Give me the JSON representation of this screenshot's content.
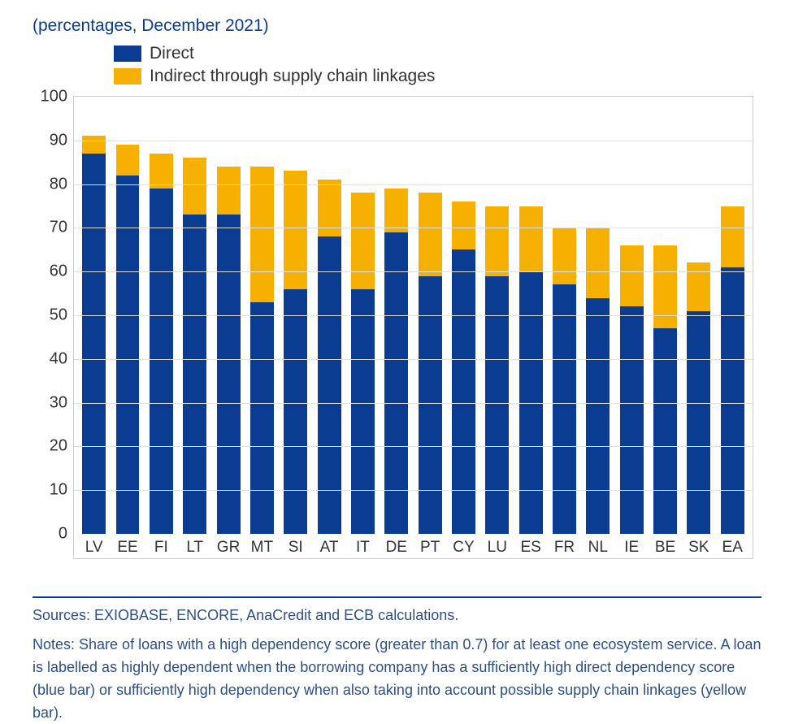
{
  "subtitle": "(percentages, December 2021)",
  "subtitle_color": "#0a3d91",
  "legend": {
    "items": [
      {
        "label": "Direct",
        "color": "#0a3d91"
      },
      {
        "label": "Indirect through supply chain linkages",
        "color": "#f6b000"
      }
    ]
  },
  "chart": {
    "type": "stacked-bar",
    "ylim": [
      0,
      100
    ],
    "ytick_step": 10,
    "yticks": [
      0,
      10,
      20,
      30,
      40,
      50,
      60,
      70,
      80,
      90,
      100
    ],
    "grid_color": "#e0e0e0",
    "border_color": "#cccccc",
    "background_color": "#ffffff",
    "tick_font_size": 20,
    "tick_color": "#333333",
    "bar_width": 0.7,
    "categories": [
      "LV",
      "EE",
      "FI",
      "LT",
      "GR",
      "MT",
      "SI",
      "AT",
      "IT",
      "DE",
      "PT",
      "CY",
      "LU",
      "ES",
      "FR",
      "NL",
      "IE",
      "BE",
      "SK",
      "EA"
    ],
    "series": [
      {
        "name": "Direct",
        "color": "#0a3d91",
        "values": [
          87,
          82,
          79,
          73,
          73,
          53,
          56,
          68,
          56,
          69,
          59,
          65,
          59,
          60,
          57,
          54,
          52,
          47,
          51,
          61
        ]
      },
      {
        "name": "Indirect through supply chain linkages",
        "color": "#f6b000",
        "values": [
          4,
          7,
          8,
          13,
          11,
          31,
          27,
          13,
          22,
          10,
          19,
          11,
          16,
          15,
          13,
          16,
          14,
          19,
          11,
          14
        ]
      }
    ]
  },
  "footer": {
    "rule_color": "#0a3d91",
    "text_color": "#2c4f86",
    "sources": "Sources: EXIOBASE, ENCORE, AnaCredit and ECB calculations.",
    "notes": "Notes: Share of loans with a high dependency score (greater than 0.7) for at least one ecosystem service. A loan is labelled as highly dependent when the borrowing company has a sufficiently high direct dependency score (blue bar) or sufficiently high dependency when also taking into account possible supply chain linkages (yellow bar)."
  }
}
